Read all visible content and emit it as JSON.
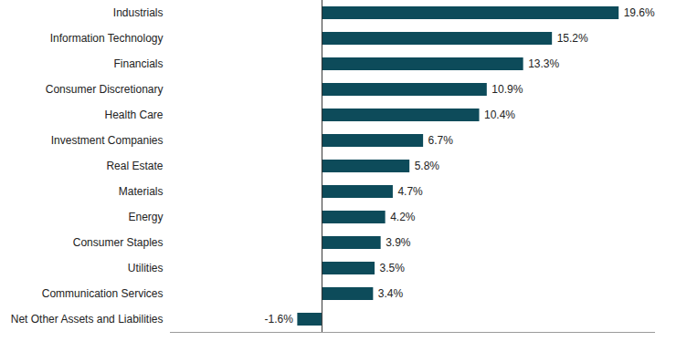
{
  "chart_data": {
    "type": "bar",
    "orientation": "horizontal",
    "categories": [
      "Industrials",
      "Information Technology",
      "Financials",
      "Consumer Discretionary",
      "Health Care",
      "Investment Companies",
      "Real Estate",
      "Materials",
      "Energy",
      "Consumer Staples",
      "Utilities",
      "Communication Services",
      "Net Other Assets and Liabilities"
    ],
    "values": [
      19.6,
      15.2,
      13.3,
      10.9,
      10.4,
      6.7,
      5.8,
      4.7,
      4.2,
      3.9,
      3.5,
      3.4,
      -1.6
    ],
    "value_labels": [
      "19.6%",
      "15.2%",
      "13.3%",
      "10.9%",
      "10.4%",
      "6.7%",
      "5.8%",
      "4.7%",
      "4.2%",
      "3.9%",
      "3.5%",
      "3.4%",
      "-1.6%"
    ],
    "color": "#0d4b5a",
    "xlim": [
      -10,
      22
    ],
    "data_labels": true,
    "tick_labels": "y",
    "grid": false
  }
}
